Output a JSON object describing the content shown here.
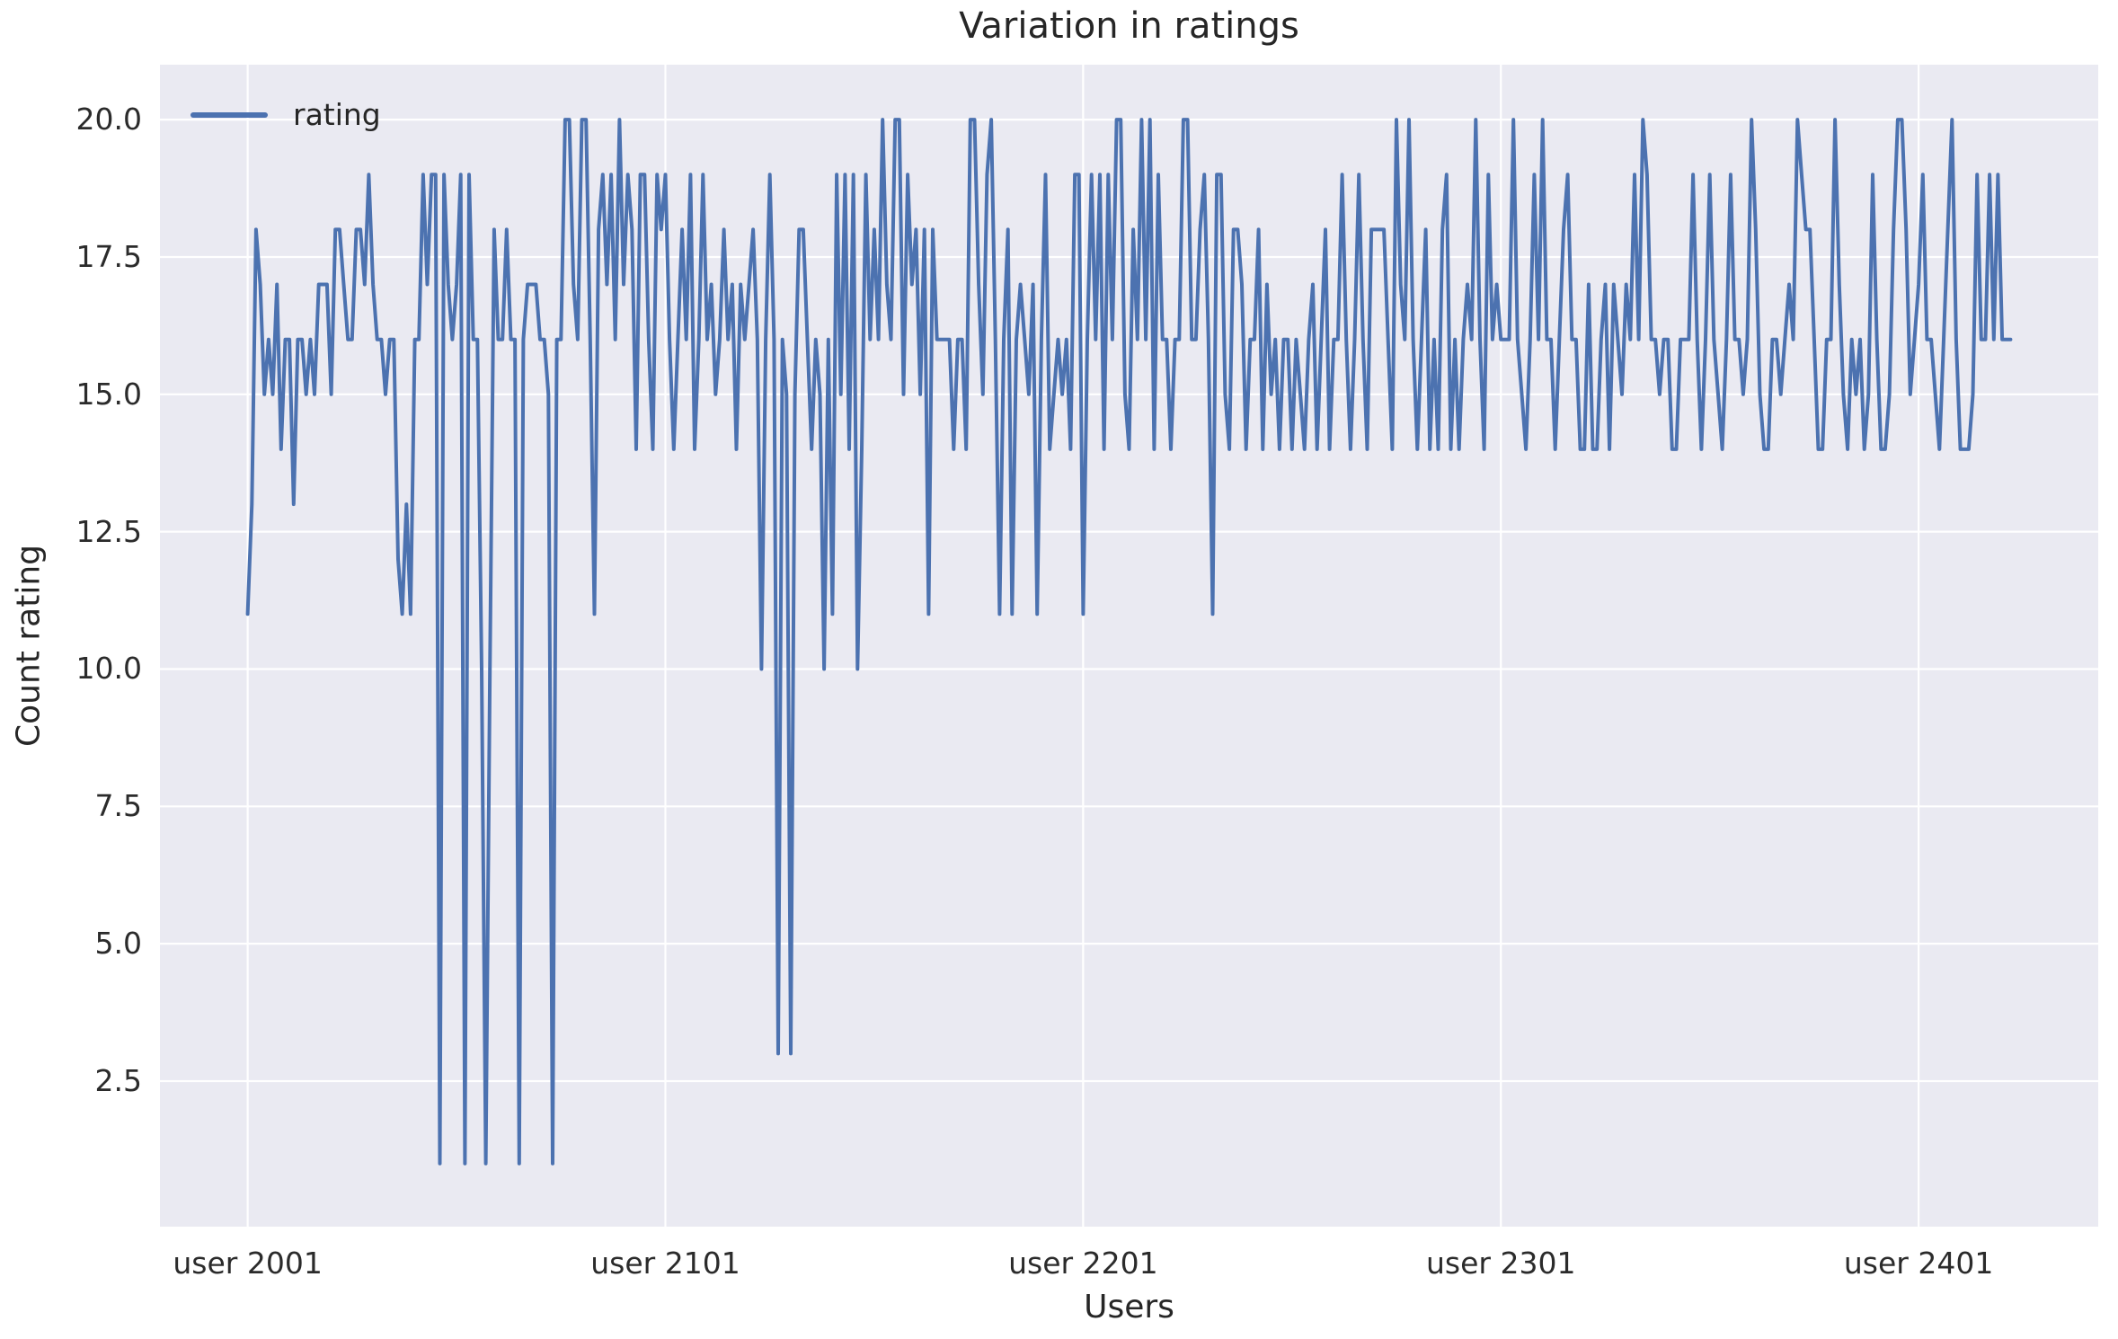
{
  "chart": {
    "title": "Variation in ratings",
    "xlabel": "Users",
    "ylabel": "Count rating",
    "legend_label": "rating"
  },
  "chart_data": {
    "type": "line",
    "title": "Variation in ratings",
    "xlabel": "Users",
    "ylabel": "Count rating",
    "legend": [
      "rating"
    ],
    "legend_position": "upper left",
    "grid": true,
    "colors": {
      "line": "#4c72b0",
      "plot_bg": "#eaeaf2",
      "grid": "#ffffff",
      "text": "#262626"
    },
    "x_start": 2001,
    "x_tick_positions": [
      2001,
      2101,
      2201,
      2301,
      2401
    ],
    "x_tick_labels": [
      "user 2001",
      "user 2101",
      "user 2201",
      "user 2301",
      "user 2401"
    ],
    "y_ticks": [
      2.5,
      5.0,
      7.5,
      10.0,
      12.5,
      15.0,
      17.5,
      20.0
    ],
    "y_tick_labels": [
      "2.5",
      "5.0",
      "7.5",
      "10.0",
      "12.5",
      "15.0",
      "17.5",
      "20.0"
    ],
    "xlim": [
      1980,
      2444
    ],
    "ylim": [
      -0.15,
      21.0
    ],
    "series": [
      {
        "name": "rating",
        "values": [
          11,
          13,
          18,
          17,
          15,
          16,
          15,
          17,
          14,
          16,
          16,
          13,
          16,
          16,
          15,
          16,
          15,
          17,
          17,
          17,
          15,
          18,
          18,
          17,
          16,
          16,
          18,
          18,
          17,
          19,
          17,
          16,
          16,
          15,
          16,
          16,
          12,
          11,
          13,
          11,
          16,
          16,
          19,
          17,
          19,
          19,
          1,
          19,
          17,
          16,
          17,
          19,
          1,
          19,
          16,
          16,
          10,
          1,
          10,
          18,
          16,
          16,
          18,
          16,
          16,
          1,
          16,
          17,
          17,
          17,
          16,
          16,
          15,
          1,
          16,
          16,
          20,
          20,
          17,
          16,
          20,
          20,
          16,
          11,
          18,
          19,
          17,
          19,
          16,
          20,
          17,
          19,
          18,
          14,
          19,
          19,
          16,
          14,
          19,
          18,
          19,
          16,
          14,
          16,
          18,
          16,
          19,
          14,
          16,
          19,
          16,
          17,
          15,
          16,
          18,
          16,
          17,
          14,
          17,
          16,
          17,
          18,
          16,
          10,
          16,
          19,
          16,
          3,
          16,
          15,
          3,
          15,
          18,
          18,
          16,
          14,
          16,
          15,
          10,
          16,
          11,
          19,
          15,
          19,
          14,
          19,
          10,
          14,
          19,
          16,
          18,
          16,
          20,
          17,
          16,
          20,
          20,
          15,
          19,
          17,
          18,
          15,
          18,
          11,
          18,
          16,
          16,
          16,
          16,
          14,
          16,
          16,
          14,
          20,
          20,
          17,
          15,
          19,
          20,
          16,
          11,
          16,
          18,
          11,
          16,
          17,
          16,
          15,
          17,
          11,
          16,
          19,
          14,
          15,
          16,
          15,
          16,
          14,
          19,
          19,
          11,
          16,
          19,
          16,
          19,
          14,
          19,
          16,
          20,
          20,
          15,
          14,
          18,
          16,
          20,
          16,
          20,
          14,
          19,
          16,
          16,
          14,
          16,
          16,
          20,
          20,
          16,
          16,
          18,
          19,
          16,
          11,
          19,
          19,
          15,
          14,
          18,
          18,
          17,
          14,
          16,
          16,
          18,
          14,
          17,
          15,
          16,
          14,
          16,
          16,
          14,
          16,
          15,
          14,
          16,
          17,
          14,
          16,
          18,
          14,
          16,
          16,
          19,
          16,
          14,
          16,
          19,
          16,
          14,
          18,
          18,
          18,
          18,
          16,
          14,
          20,
          17,
          16,
          20,
          16,
          14,
          16,
          18,
          14,
          16,
          14,
          18,
          19,
          14,
          16,
          14,
          16,
          17,
          16,
          20,
          16,
          14,
          19,
          16,
          17,
          16,
          16,
          16,
          20,
          16,
          15,
          14,
          16,
          19,
          16,
          20,
          16,
          16,
          14,
          16,
          18,
          19,
          16,
          16,
          14,
          14,
          17,
          14,
          14,
          16,
          17,
          14,
          17,
          16,
          15,
          17,
          16,
          19,
          16,
          20,
          19,
          16,
          16,
          15,
          16,
          16,
          14,
          14,
          16,
          16,
          16,
          19,
          16,
          14,
          16,
          19,
          16,
          15,
          14,
          16,
          19,
          16,
          16,
          15,
          16,
          20,
          18,
          15,
          14,
          14,
          16,
          16,
          15,
          16,
          17,
          16,
          20,
          19,
          18,
          18,
          16,
          14,
          14,
          16,
          16,
          20,
          17,
          15,
          14,
          16,
          15,
          16,
          14,
          15,
          19,
          16,
          14,
          14,
          15,
          18,
          20,
          20,
          18,
          15,
          16,
          17,
          19,
          16,
          16,
          15,
          14,
          16,
          18,
          20,
          16,
          14,
          14,
          14,
          15,
          19,
          16,
          16,
          19,
          16,
          19,
          16,
          16,
          16
        ]
      }
    ]
  }
}
